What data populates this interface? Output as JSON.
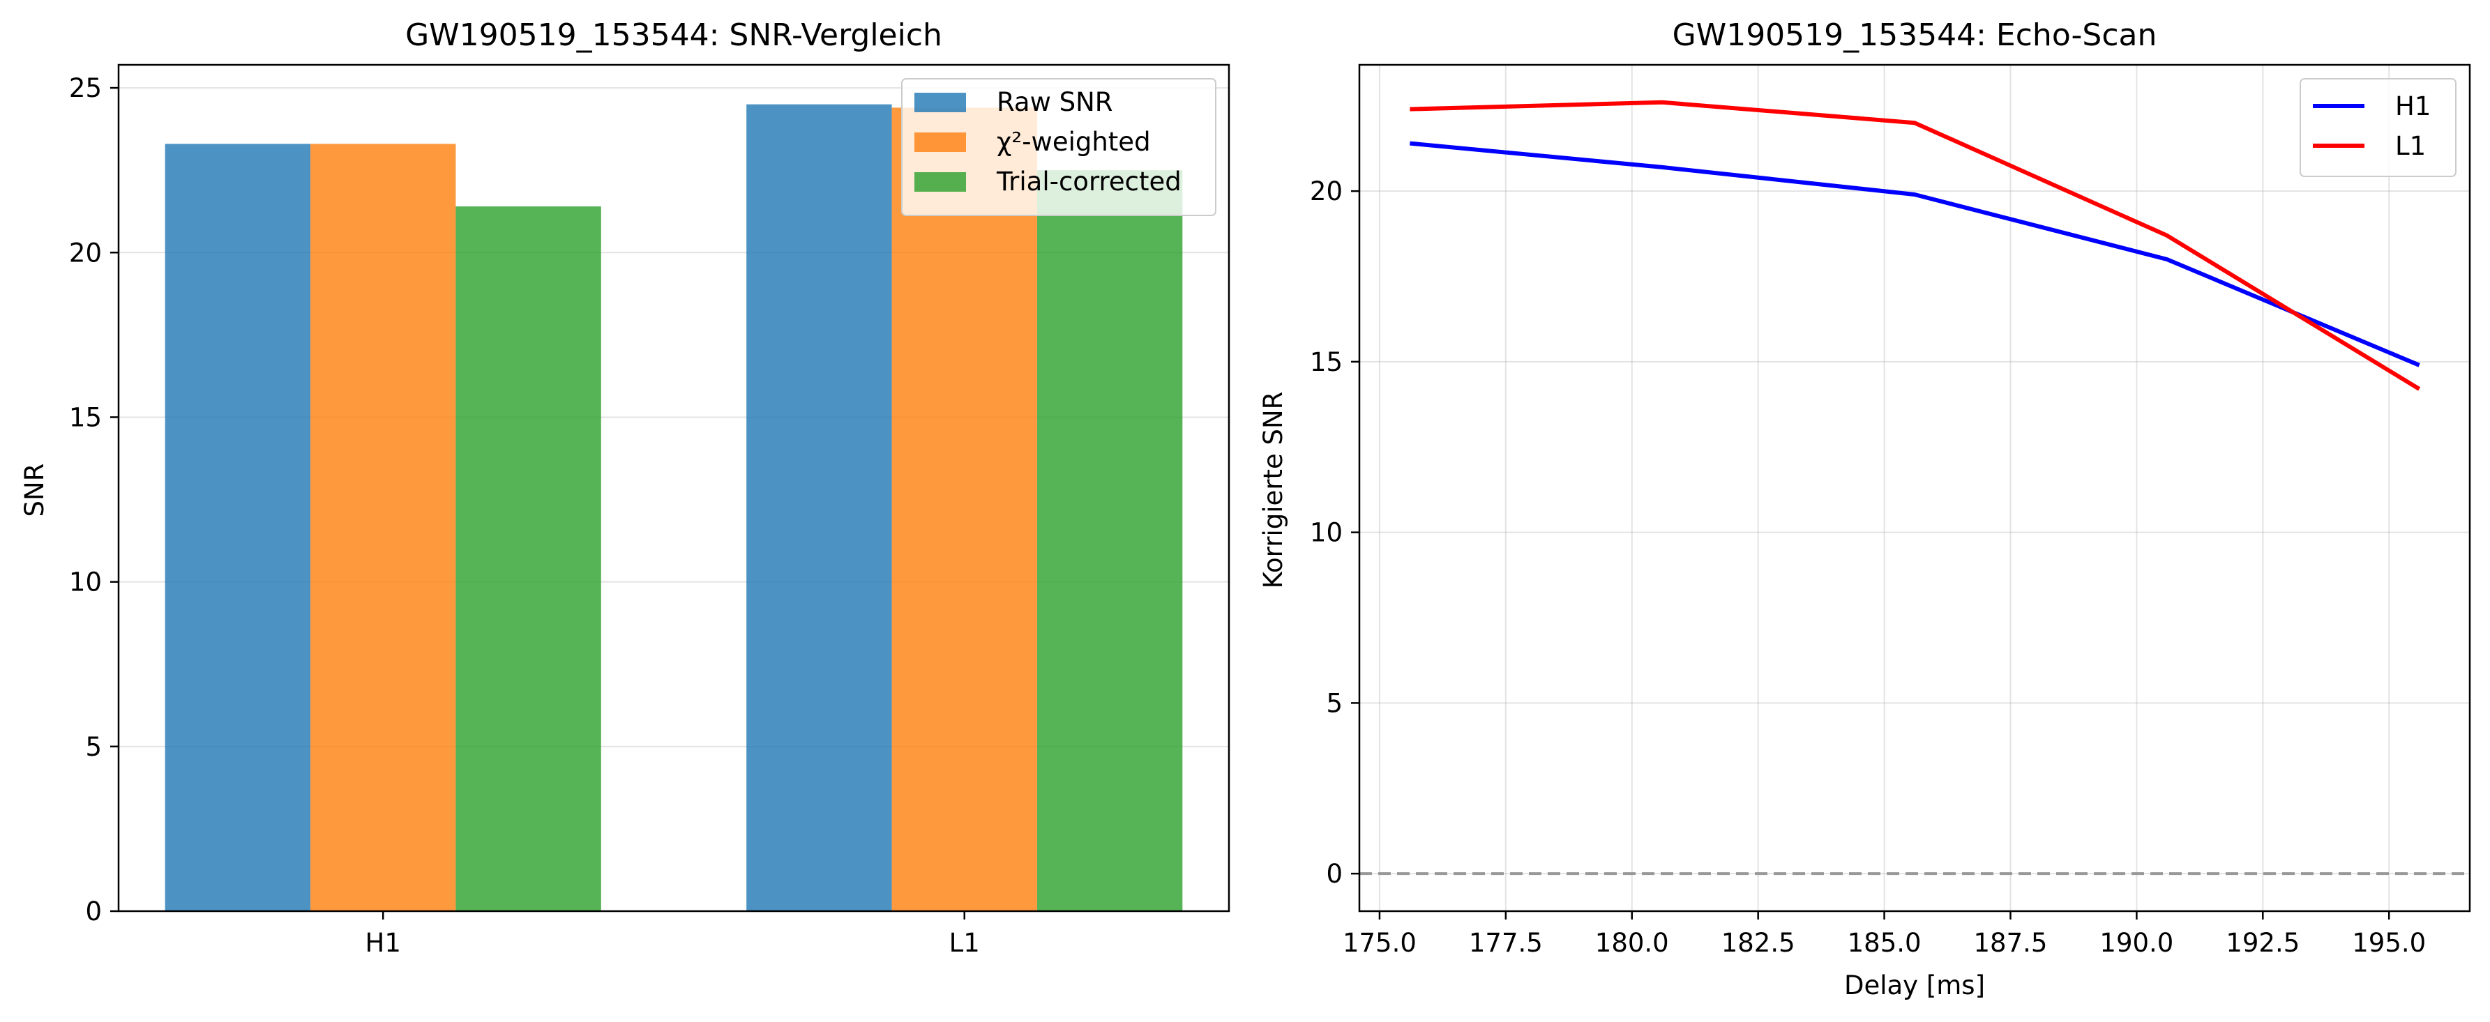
{
  "chart_data": [
    {
      "type": "bar",
      "title": "GW190519_153544: SNR-Vergleich",
      "xlabel": "",
      "ylabel": "SNR",
      "categories": [
        "H1",
        "L1"
      ],
      "series": [
        {
          "name": "Raw SNR",
          "values": [
            23.3,
            24.5
          ],
          "color": "#1f77b4"
        },
        {
          "name": "χ²-weighted",
          "values": [
            23.3,
            24.4
          ],
          "color": "#ff7f0e"
        },
        {
          "name": "Trial-corrected",
          "values": [
            21.4,
            22.5
          ],
          "color": "#2ca02c"
        }
      ],
      "ylim": [
        0,
        25.7
      ],
      "yticks": [
        "0",
        "5",
        "10",
        "15",
        "20",
        "25"
      ],
      "grid": "y",
      "legend": "top-right"
    },
    {
      "type": "line",
      "title": "GW190519_153544: Echo-Scan",
      "xlabel": "Delay [ms]",
      "ylabel": "Korrigierte SNR",
      "x": [
        175.6,
        180.6,
        185.6,
        190.6,
        195.6
      ],
      "series": [
        {
          "name": "H1",
          "values": [
            21.4,
            20.7,
            19.9,
            18.0,
            14.9
          ],
          "color": "#0000ff"
        },
        {
          "name": "L1",
          "values": [
            22.4,
            22.6,
            22.0,
            18.7,
            14.2
          ],
          "color": "#ff0000"
        }
      ],
      "reference_line": {
        "y": 0,
        "color": "#999999",
        "style": "dashed"
      },
      "xlim": [
        174.6,
        196.6
      ],
      "ylim": [
        -1.1,
        23.7
      ],
      "xticks": [
        "175.0",
        "177.5",
        "180.0",
        "182.5",
        "185.0",
        "187.5",
        "190.0",
        "192.5",
        "195.0"
      ],
      "yticks": [
        "0",
        "5",
        "10",
        "15",
        "20"
      ],
      "grid": "both",
      "legend": "top-right"
    }
  ]
}
